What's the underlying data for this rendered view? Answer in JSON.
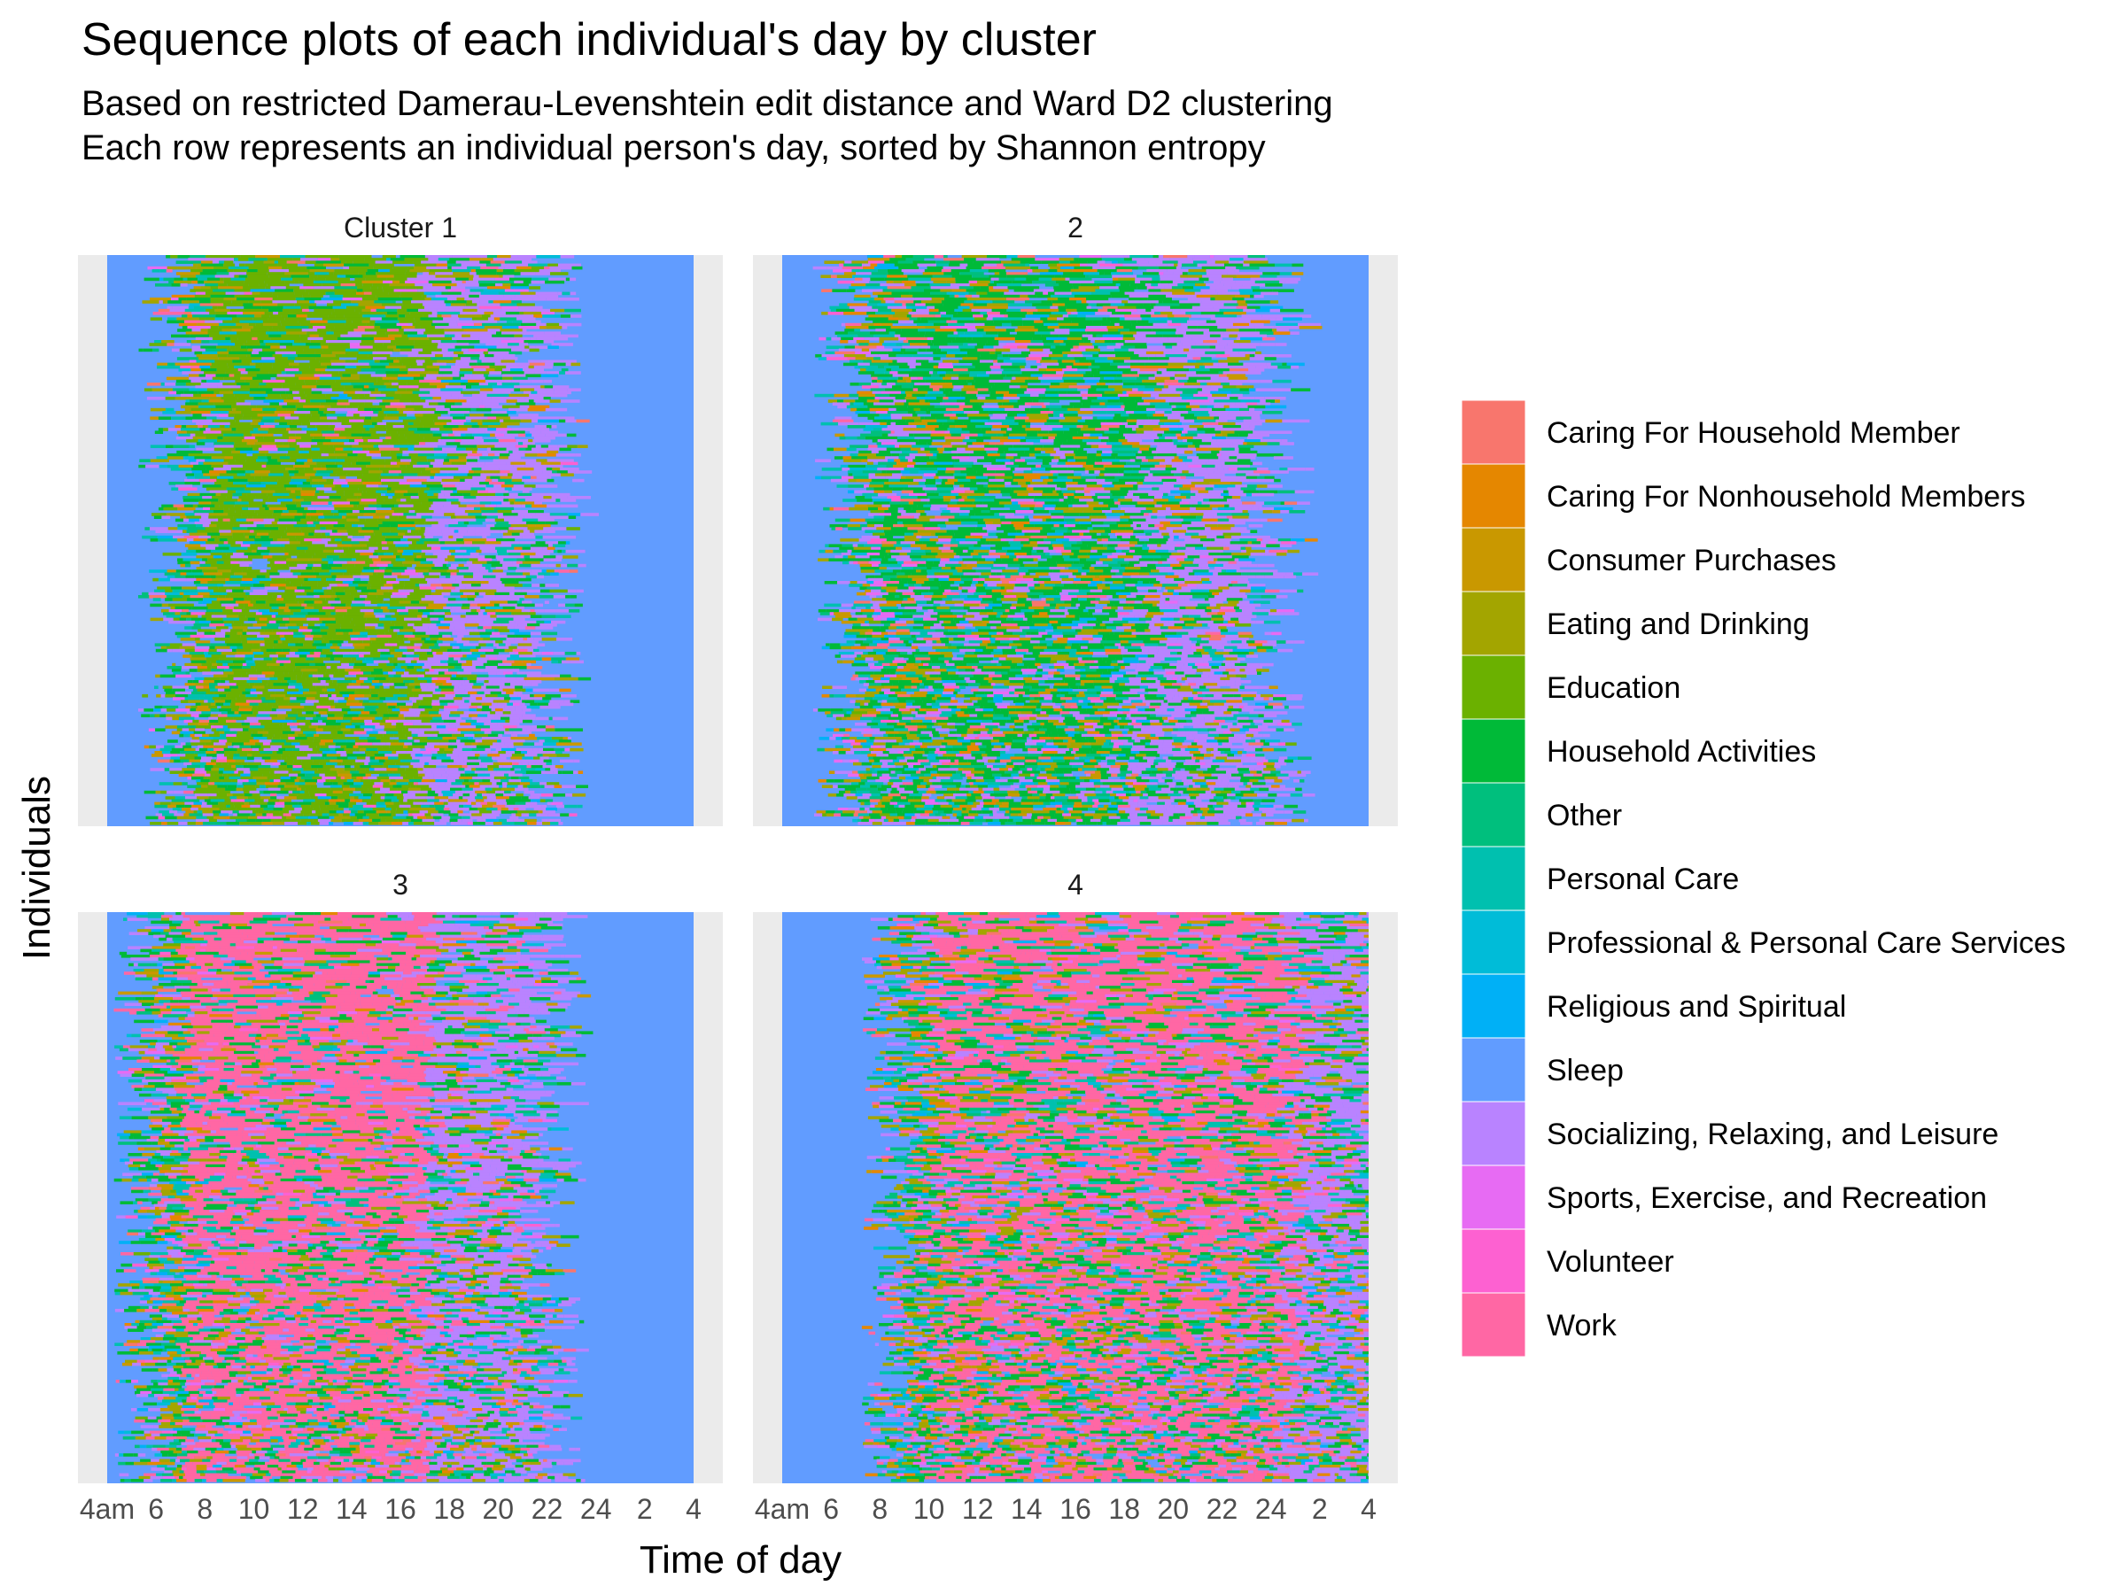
{
  "chart_data": {
    "type": "heatmap",
    "title": "Sequence plots of each individual's day by cluster",
    "subtitle_lines": [
      "Based on restricted Damerau-Levenshtein edit distance and Ward D2 clustering",
      "Each row represents an individual person's day, sorted by Shannon entropy"
    ],
    "xlabel": "Time of day",
    "ylabel": "Individuals",
    "x_tick_labels": [
      "4am",
      "6",
      "8",
      "10",
      "12",
      "14",
      "16",
      "18",
      "20",
      "22",
      "24",
      "2",
      "4"
    ],
    "x_tick_hours": [
      4,
      6,
      8,
      10,
      12,
      14,
      16,
      18,
      20,
      22,
      24,
      26,
      28
    ],
    "xlim_hours": [
      4,
      28
    ],
    "panels": [
      {
        "label": "Cluster 1",
        "dominant": "Education"
      },
      {
        "label": "2",
        "dominant": "Household Activities"
      },
      {
        "label": "3",
        "dominant": "Work"
      },
      {
        "label": "4",
        "dominant": "Work"
      }
    ],
    "legend_placement": "right",
    "legend": [
      {
        "label": "Caring For Household Member",
        "color": "#F8766D"
      },
      {
        "label": "Caring For Nonhousehold Members",
        "color": "#E58700"
      },
      {
        "label": "Consumer Purchases",
        "color": "#C99800"
      },
      {
        "label": "Eating and Drinking",
        "color": "#A3A500"
      },
      {
        "label": "Education",
        "color": "#6BB100"
      },
      {
        "label": "Household Activities",
        "color": "#00BA38"
      },
      {
        "label": "Other",
        "color": "#00BF7D"
      },
      {
        "label": "Personal Care",
        "color": "#00C0AF"
      },
      {
        "label": "Professional & Personal Care Services",
        "color": "#00BCD8"
      },
      {
        "label": "Religious and Spiritual",
        "color": "#00B0F6"
      },
      {
        "label": "Sleep",
        "color": "#619CFF"
      },
      {
        "label": "Socializing, Relaxing, and Leisure",
        "color": "#B983FF"
      },
      {
        "label": "Sports, Exercise, and Recreation",
        "color": "#E76BF3"
      },
      {
        "label": "Volunteer",
        "color": "#FD61D1"
      },
      {
        "label": "Work",
        "color": "#FF67A4"
      }
    ]
  }
}
